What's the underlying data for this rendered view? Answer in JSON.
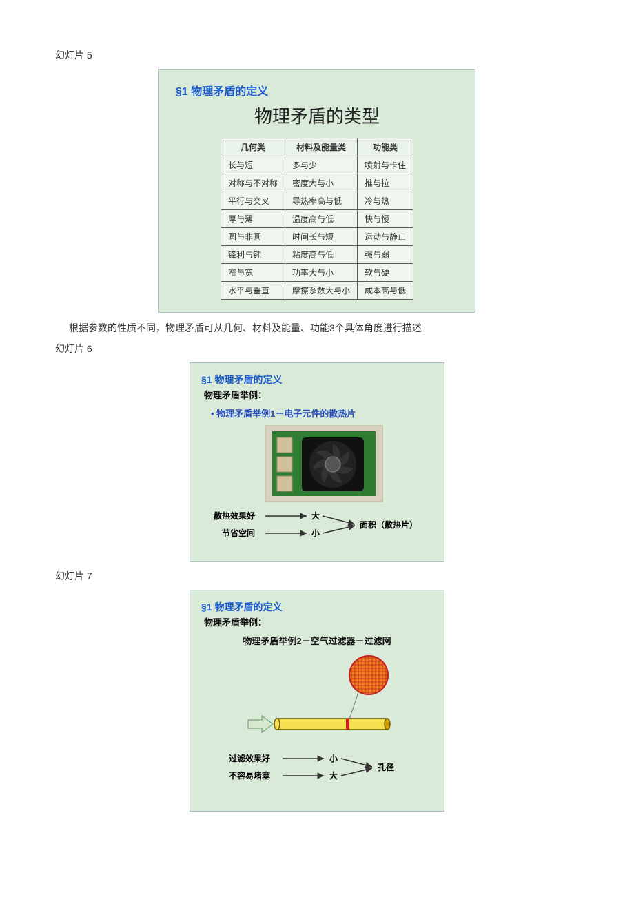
{
  "slide5": {
    "label": "幻灯片 5",
    "heading1": "§1 物理矛盾的定义",
    "heading2": "物理矛盾的类型",
    "columns": [
      "几何类",
      "材料及能量类",
      "功能类"
    ],
    "rows": [
      [
        "长与短",
        "多与少",
        "喷射与卡住"
      ],
      [
        "对称与不对称",
        "密度大与小",
        "推与拉"
      ],
      [
        "平行与交叉",
        "导热率高与低",
        "冷与热"
      ],
      [
        "厚与薄",
        "温度高与低",
        "快与慢"
      ],
      [
        "圆与非圆",
        "时间长与短",
        "运动与静止"
      ],
      [
        "锋利与钝",
        "粘度高与低",
        "强与弱"
      ],
      [
        "窄与宽",
        "功率大与小",
        "软与硬"
      ],
      [
        "水平与垂直",
        "摩擦系数大与小",
        "成本高与低"
      ]
    ],
    "caption": "根据参数的性质不同，物理矛盾可从几何、材料及能量、功能3个具体角度进行描述"
  },
  "slide6": {
    "label": "幻灯片 6",
    "heading1": "§1 物理矛盾的定义",
    "heading2": "物理矛盾举例：",
    "sub": "• 物理矛盾举例1－电子元件的散热片",
    "row1_left": "散热效果好",
    "row1_mid": "大",
    "row2_left": "节省空间",
    "row2_mid": "小",
    "right": "面积（散热片）",
    "image_desc": "heatsink-photo",
    "colors": {
      "board": "#2e7d32",
      "chip": "#cfbf9a",
      "heatsink_body": "#222",
      "fan_center": "#555",
      "blade": "#333",
      "frame": "#d9d2c0"
    }
  },
  "slide7": {
    "label": "幻灯片 7",
    "heading1": "§1 物理矛盾的定义",
    "heading2": "物理矛盾举例：",
    "sub": "物理矛盾举例2－空气过滤器－过滤网",
    "row1_left": "过滤效果好",
    "row1_mid": "小",
    "row2_left": "不容易堵塞",
    "row2_mid": "大",
    "right": "孔径",
    "colors": {
      "mesh_fill": "#f08020",
      "mesh_grid": "#c02020",
      "tube_fill": "#f5e050",
      "tube_stroke": "#6b5b00",
      "marker": "#d02020",
      "arrow_body": "#d6e8d0",
      "arrow_stroke": "#7aa57a"
    }
  }
}
